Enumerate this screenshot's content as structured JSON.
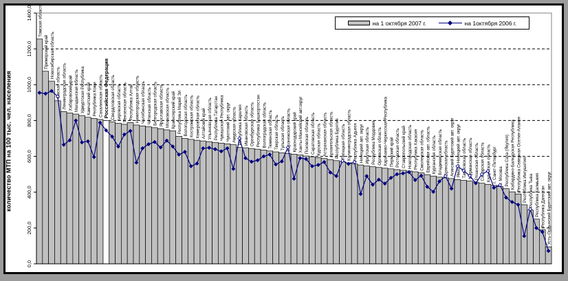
{
  "window": {
    "background": "#9b9b9b",
    "frame_color": "#000000",
    "inner_background": "#ffffff"
  },
  "legend": {
    "items": [
      {
        "label": "на 1 октября 2007 г.",
        "type": "bar",
        "color": "#c0c0c0"
      },
      {
        "label": "на 1октября 2006 г.",
        "type": "line",
        "color": "#000080"
      }
    ]
  },
  "chart_data": {
    "type": "bar",
    "title": "",
    "xlabel": "",
    "ylabel": "количество МТП на 100 тыс. чел. населения",
    "ylim": [
      0,
      1400
    ],
    "ytick_step": 200,
    "ytick_labels": [
      "0,0",
      "200,0",
      "400,0",
      "600,0",
      "800,0",
      "1000,0",
      "1200,0",
      "1400,0"
    ],
    "grid": "horizontal-dashed",
    "legend_position": "top-right",
    "bar_color": "#c0c0c0",
    "line_color": "#000080",
    "highlight_category": "Российская Федерация",
    "highlight_bar_color": "#ffffff",
    "categories": [
      "Томская область",
      "Приморский край",
      "Новосибирская область",
      "Омская область",
      "Ленинградская область",
      "Хабаровский край",
      "Магаданская область",
      "Удмуртская Республика",
      "Камчатский край",
      "Республика Коми",
      "Сахалинская область",
      "Российская Федерация",
      "Свердловская область",
      "Кировская область",
      "Пензенская область",
      "Республика Алтай",
      "Нижегородская область",
      "Челябинская область",
      "Читинская область",
      "Белгородская область",
      "Ярославская область",
      "Московская область",
      "Красноярский край",
      "Республика Марий Эл",
      "Вологодская область",
      "Костромская область",
      "Кемеровская область",
      "Алтайский край",
      "Ульяновская область",
      "Республика Татарстан",
      "Чувашская Республика",
      "Чукотский авт. округ",
      "Амурская область",
      "Республика Карелия",
      "Ивановская область",
      "Оренбургская область",
      "Республика Башкортостан",
      "Волгоградская область",
      "Тюменская область",
      "Тверская область",
      "Тульская область",
      "Воронежская область",
      "Краснодарский край",
      "Ханты-Мансийский авт.округ",
      "Псковская область",
      "Саратовская область",
      "Курская область",
      "Астраханская область",
      "Архангельская область",
      "Республика Бурятия",
      "Липецкая область",
      "Калининградская область",
      "Республика Адыгея",
      "Ненецкий авт. округ",
      "Иркутская область",
      "Республика Мордовия",
      "Орловская область",
      "Карачаево-Черкесская Республика",
      "Пермский край",
      "Ростовская область",
      "Ставропольский край",
      "Новгородская область",
      "Республика Хакасия",
      "Смоленская область",
      "Еврейская авт. область",
      "Курганская область",
      "Владимирская область",
      "Брянская область",
      "Агинский Бурятский авт. округ",
      "Ямало-Ненецкий авт. округ",
      "Тамбовская область",
      "Мурманская область",
      "Рязанская область",
      "Самарская область",
      "Калужская область",
      "г. Санкт-Петербург",
      "г. Москва",
      "Республика Саха (Якутия)",
      "Кабардино-Балкарская Республика",
      "Республика Северная Осетия-Алания",
      "Республика Ингушетия",
      "Республика Тыва",
      "Республика Калмыкия",
      "Республика Дагестан",
      "Усть-Ордынский Бурятский авт. округ"
    ],
    "series": [
      {
        "name": "на 1 октября 2007 г.",
        "type": "bar",
        "values": [
          1255,
          1075,
          1020,
          910,
          850,
          842,
          836,
          828,
          818,
          812,
          806,
          800,
          792,
          785,
          779,
          789,
          775,
          770,
          765,
          760,
          754,
          748,
          742,
          712,
          700,
          695,
          690,
          686,
          682,
          678,
          674,
          670,
          665,
          650,
          648,
          644,
          640,
          635,
          630,
          625,
          620,
          616,
          612,
          608,
          602,
          598,
          592,
          588,
          582,
          576,
          570,
          564,
          558,
          552,
          546,
          542,
          538,
          534,
          530,
          526,
          522,
          518,
          514,
          508,
          498,
          490,
          484,
          480,
          476,
          470,
          466,
          462,
          456,
          450,
          444,
          438,
          432,
          420,
          402,
          390,
          330,
          300,
          250,
          190,
          95
        ]
      },
      {
        "name": "на 1октября 2006 г.",
        "type": "line",
        "values": [
          955,
          950,
          965,
          935,
          665,
          690,
          800,
          678,
          684,
          596,
          788,
          745,
          710,
          655,
          722,
          742,
          565,
          645,
          668,
          680,
          650,
          688,
          655,
          610,
          625,
          545,
          560,
          645,
          648,
          640,
          628,
          645,
          530,
          700,
          590,
          570,
          578,
          600,
          610,
          555,
          572,
          650,
          475,
          590,
          585,
          545,
          552,
          568,
          510,
          490,
          575,
          558,
          568,
          390,
          490,
          442,
          470,
          448,
          480,
          500,
          505,
          512,
          468,
          492,
          430,
          402,
          460,
          490,
          420,
          545,
          520,
          492,
          450,
          500,
          518,
          425,
          440,
          370,
          345,
          330,
          155,
          305,
          200,
          178,
          72
        ]
      }
    ]
  }
}
